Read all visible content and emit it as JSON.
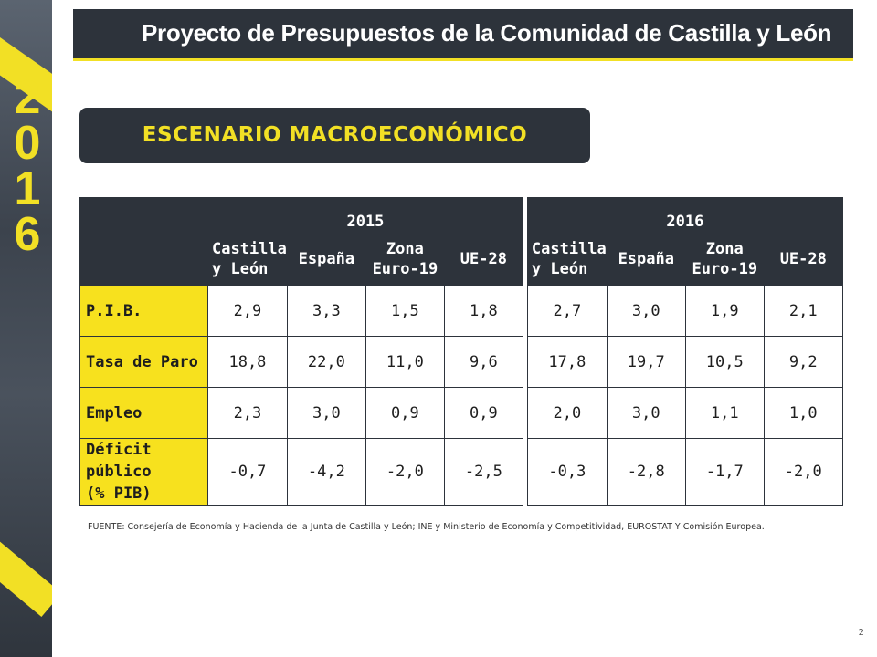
{
  "header": {
    "title": "Proyecto de Presupuestos de la Comunidad de Castilla y León",
    "year_digits": [
      "2",
      "0",
      "1",
      "6"
    ]
  },
  "section": {
    "title": "ESCENARIO MACROECONÓMICO"
  },
  "table": {
    "years": [
      "2015",
      "2016"
    ],
    "columns": [
      [
        "Castilla",
        "y León"
      ],
      [
        "España"
      ],
      [
        "Zona",
        "Euro-19"
      ],
      [
        "UE-28"
      ]
    ],
    "rows": [
      {
        "label": [
          "P.I.B."
        ],
        "values_2015": [
          "2,9",
          "3,3",
          "1,5",
          "1,8"
        ],
        "values_2016": [
          "2,7",
          "3,0",
          "1,9",
          "2,1"
        ]
      },
      {
        "label": [
          "Tasa de Paro"
        ],
        "values_2015": [
          "18,8",
          "22,0",
          "11,0",
          "9,6"
        ],
        "values_2016": [
          "17,8",
          "19,7",
          "10,5",
          "9,2"
        ]
      },
      {
        "label": [
          "Empleo"
        ],
        "values_2015": [
          "2,3",
          "3,0",
          "0,9",
          "0,9"
        ],
        "values_2016": [
          "2,0",
          "3,0",
          "1,1",
          "1,0"
        ]
      },
      {
        "label": [
          "Déficit público",
          "(% PIB)"
        ],
        "values_2015": [
          "-0,7",
          "-4,2",
          "-2,0",
          "-2,5"
        ],
        "values_2016": [
          "-0,3",
          "-2,8",
          "-1,7",
          "-2,0"
        ]
      }
    ]
  },
  "source": "FUENTE: Consejería de Economía y Hacienda de la Junta de Castilla y León; INE y Ministerio de Economía y Competitividad, EUROSTAT Y Comisión Europea.",
  "page_number": "2",
  "colors": {
    "dark": "#2d333b",
    "accent_yellow": "#f2e025",
    "label_yellow": "#f7e11e"
  }
}
